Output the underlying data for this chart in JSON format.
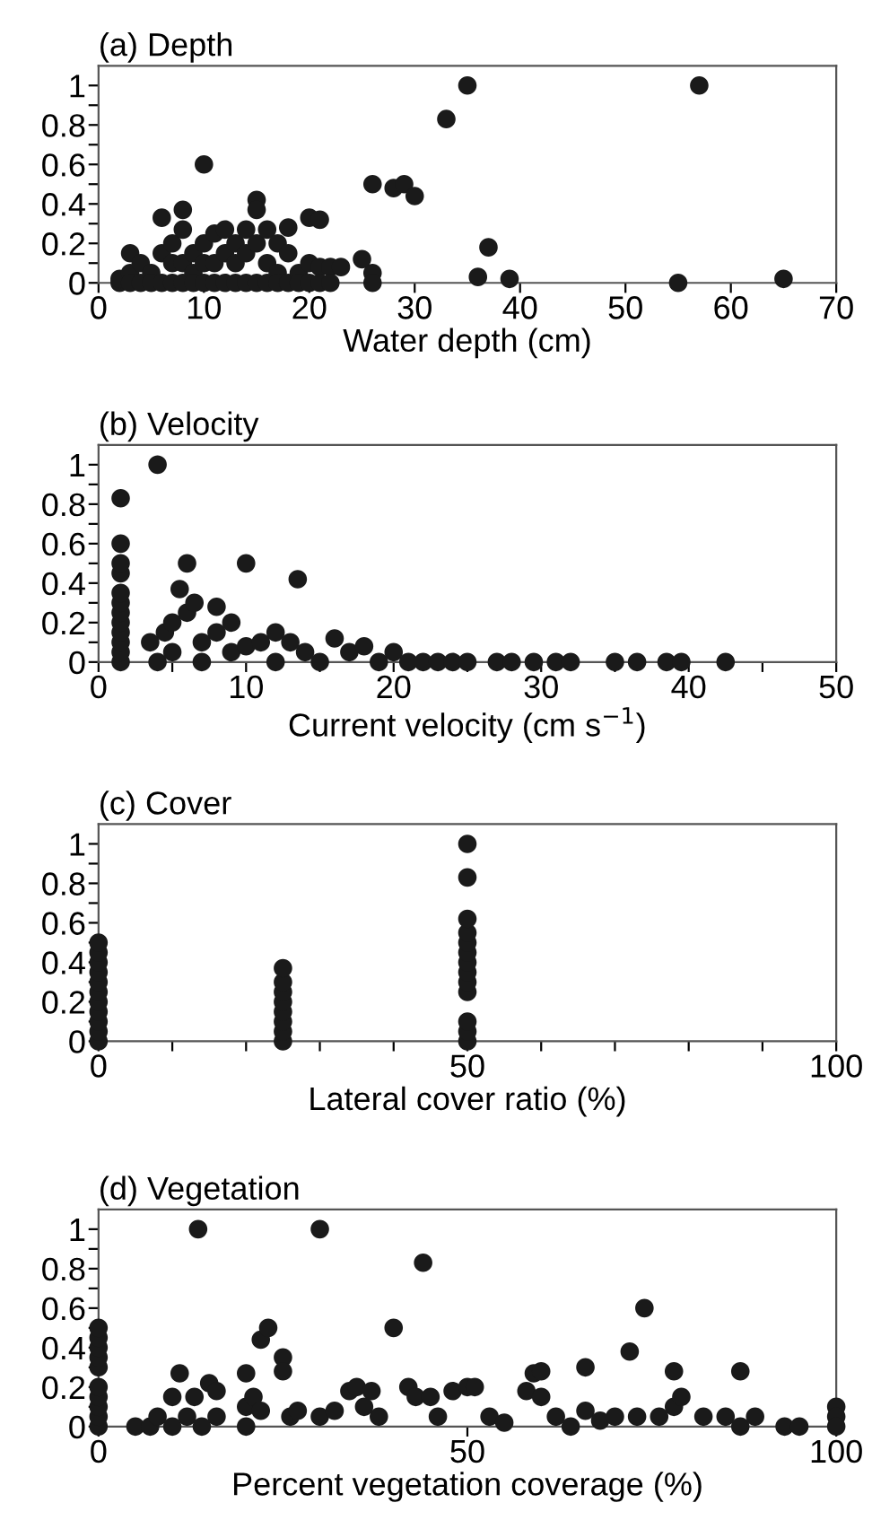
{
  "chart_data": [
    {
      "type": "scatter",
      "title": "(a) Depth",
      "xlabel": "Water depth (cm)",
      "xlim": [
        0,
        70
      ],
      "xticks": [
        0,
        10,
        20,
        30,
        40,
        50,
        60,
        70
      ],
      "ylim": [
        0,
        1.1
      ],
      "yticks": [
        0,
        {
          "value": 0.1,
          "label": null
        },
        0.2,
        {
          "value": 0.3,
          "label": null
        },
        0.4,
        {
          "value": 0.5,
          "label": null
        },
        0.6,
        {
          "value": 0.7,
          "label": null
        },
        0.8,
        {
          "value": 0.9,
          "label": null
        },
        1
      ],
      "marker": "circle",
      "grid": false,
      "legend": false,
      "series": [
        {
          "color": "#1a1a1a",
          "x": [
            2,
            2,
            3,
            3,
            3,
            4,
            4,
            5,
            5,
            6,
            6,
            6,
            7,
            7,
            7,
            8,
            8,
            8,
            8,
            9,
            9,
            9,
            10,
            10,
            10,
            10,
            11,
            11,
            11,
            12,
            12,
            12,
            13,
            13,
            13,
            14,
            14,
            14,
            15,
            15,
            15,
            15,
            16,
            16,
            16,
            17,
            17,
            17,
            18,
            18,
            18,
            19,
            19,
            20,
            20,
            20,
            21,
            21,
            21,
            22,
            22,
            23,
            25,
            26,
            26,
            26,
            28,
            29,
            30,
            33,
            35,
            36,
            37,
            39,
            55,
            57,
            65
          ],
          "values": [
            0,
            0.02,
            0.15,
            0.05,
            0,
            0.1,
            0,
            0.05,
            0,
            0.33,
            0.15,
            0,
            0.2,
            0.1,
            0,
            0.37,
            0.27,
            0.1,
            0,
            0.15,
            0.05,
            0,
            0.6,
            0.2,
            0.1,
            0,
            0.25,
            0.1,
            0,
            0.27,
            0.15,
            0,
            0.2,
            0.1,
            0,
            0.27,
            0.15,
            0,
            0.42,
            0.37,
            0.2,
            0,
            0.27,
            0.1,
            0,
            0.2,
            0.05,
            0,
            0.28,
            0.15,
            0,
            0.05,
            0,
            0.33,
            0.1,
            0,
            0.32,
            0.08,
            0,
            0.08,
            0,
            0.08,
            0.12,
            0.05,
            0,
            0.5,
            0.48,
            0.5,
            0.44,
            0.83,
            1,
            0.03,
            0.18,
            0.02,
            0,
            1,
            0.02
          ]
        }
      ]
    },
    {
      "type": "scatter",
      "title": "(b) Velocity",
      "xlabel": "Current velocity (cm s$^{−1}$)",
      "xlim": [
        0,
        50
      ],
      "xticks": [
        0,
        {
          "value": 5,
          "label": null
        },
        10,
        {
          "value": 15,
          "label": null
        },
        20,
        {
          "value": 25,
          "label": null
        },
        30,
        {
          "value": 35,
          "label": null
        },
        40,
        {
          "value": 45,
          "label": null
        },
        50
      ],
      "ylim": [
        0,
        1.1
      ],
      "yticks": [
        0,
        {
          "value": 0.1,
          "label": null
        },
        0.2,
        {
          "value": 0.3,
          "label": null
        },
        0.4,
        {
          "value": 0.5,
          "label": null
        },
        0.6,
        {
          "value": 0.7,
          "label": null
        },
        0.8,
        {
          "value": 0.9,
          "label": null
        },
        1
      ],
      "marker": "circle",
      "grid": false,
      "legend": false,
      "series": [
        {
          "color": "#1a1a1a",
          "x": [
            1.5,
            1.5,
            1.5,
            1.5,
            1.5,
            1.5,
            1.5,
            1.5,
            1.5,
            1.5,
            1.5,
            1.5,
            3.5,
            4,
            4,
            4.5,
            5,
            5,
            5.5,
            6,
            6,
            6.5,
            7,
            7,
            8,
            8,
            9,
            9,
            10,
            10,
            11,
            12,
            12,
            13,
            13.5,
            14,
            15,
            16,
            17,
            18,
            19,
            20,
            21,
            22,
            23,
            24,
            25,
            27,
            28,
            29.5,
            31,
            32,
            35,
            36.5,
            38.5,
            39.5,
            42.5
          ],
          "values": [
            0,
            0.05,
            0.1,
            0.15,
            0.2,
            0.25,
            0.3,
            0.35,
            0.45,
            0.5,
            0.6,
            0.83,
            0.1,
            1,
            0,
            0.15,
            0.2,
            0.05,
            0.37,
            0.5,
            0.25,
            0.3,
            0.1,
            0,
            0.28,
            0.15,
            0.2,
            0.05,
            0.5,
            0.08,
            0.1,
            0.15,
            0,
            0.1,
            0.42,
            0.05,
            0,
            0.12,
            0.05,
            0.08,
            0,
            0.05,
            0,
            0,
            0,
            0,
            0,
            0,
            0,
            0,
            0,
            0,
            0,
            0,
            0,
            0,
            0
          ]
        }
      ]
    },
    {
      "type": "scatter",
      "title": "(c) Cover",
      "xlabel": "Lateral cover ratio (%)",
      "xlim": [
        0,
        100
      ],
      "xticks": [
        0,
        {
          "value": 10,
          "label": null
        },
        {
          "value": 20,
          "label": null
        },
        {
          "value": 30,
          "label": null
        },
        {
          "value": 40,
          "label": null
        },
        50,
        {
          "value": 60,
          "label": null
        },
        {
          "value": 70,
          "label": null
        },
        {
          "value": 80,
          "label": null
        },
        {
          "value": 90,
          "label": null
        },
        100
      ],
      "ylim": [
        0,
        1.1
      ],
      "yticks": [
        0,
        {
          "value": 0.1,
          "label": null
        },
        0.2,
        {
          "value": 0.3,
          "label": null
        },
        0.4,
        {
          "value": 0.5,
          "label": null
        },
        0.6,
        {
          "value": 0.7,
          "label": null
        },
        0.8,
        {
          "value": 0.9,
          "label": null
        },
        1
      ],
      "marker": "circle",
      "grid": false,
      "legend": false,
      "series": [
        {
          "color": "#1a1a1a",
          "x": [
            0,
            0,
            0,
            0,
            0,
            0,
            0,
            0,
            0,
            0,
            0,
            25,
            25,
            25,
            25,
            25,
            25,
            25,
            25,
            50,
            50,
            50,
            50,
            50,
            50,
            50,
            50,
            50,
            50,
            50,
            50,
            50
          ],
          "values": [
            0,
            0.05,
            0.1,
            0.15,
            0.2,
            0.25,
            0.3,
            0.35,
            0.4,
            0.45,
            0.5,
            0,
            0.05,
            0.1,
            0.15,
            0.2,
            0.25,
            0.3,
            0.37,
            0,
            0.05,
            0.1,
            0.25,
            0.3,
            0.35,
            0.4,
            0.45,
            0.5,
            0.55,
            0.62,
            0.83,
            1
          ]
        }
      ]
    },
    {
      "type": "scatter",
      "title": "(d) Vegetation",
      "xlabel": "Percent vegetation coverage (%)",
      "xlim": [
        0,
        100
      ],
      "xticks": [
        0,
        50,
        100
      ],
      "ylim": [
        0,
        1.1
      ],
      "yticks": [
        0,
        {
          "value": 0.1,
          "label": null
        },
        0.2,
        {
          "value": 0.3,
          "label": null
        },
        0.4,
        {
          "value": 0.5,
          "label": null
        },
        0.6,
        {
          "value": 0.7,
          "label": null
        },
        0.8,
        {
          "value": 0.9,
          "label": null
        },
        1
      ],
      "marker": "circle",
      "grid": false,
      "legend": false,
      "series": [
        {
          "color": "#1a1a1a",
          "x": [
            0,
            0,
            0,
            0,
            0,
            0,
            0,
            0,
            0,
            0,
            5,
            7,
            8,
            10,
            10,
            11,
            12,
            13,
            13.5,
            14,
            15,
            16,
            16,
            20,
            20,
            20,
            21,
            22,
            23,
            22,
            25,
            25,
            26,
            27,
            30,
            30,
            32,
            34,
            35,
            36,
            37,
            38,
            40,
            42,
            43,
            44,
            45,
            46,
            48,
            50,
            51,
            53,
            55,
            58,
            59,
            60,
            60,
            62,
            64,
            66,
            66,
            68,
            70,
            72,
            73,
            74,
            76,
            78,
            78,
            79,
            82,
            85,
            87,
            87,
            89,
            93,
            95,
            100,
            100,
            100
          ],
          "values": [
            0,
            0.05,
            0.1,
            0.15,
            0.2,
            0.3,
            0.35,
            0.4,
            0.45,
            0.5,
            0,
            0,
            0.05,
            0.15,
            0,
            0.27,
            0.05,
            0.15,
            1,
            0,
            0.22,
            0.18,
            0.05,
            0.27,
            0.1,
            0,
            0.15,
            0.44,
            0.5,
            0.08,
            0.35,
            0.28,
            0.05,
            0.08,
            1,
            0.05,
            0.08,
            0.18,
            0.2,
            0.1,
            0.18,
            0.05,
            0.5,
            0.2,
            0.15,
            0.83,
            0.15,
            0.05,
            0.18,
            0.2,
            0.2,
            0.05,
            0.02,
            0.18,
            0.27,
            0.28,
            0.15,
            0.05,
            0,
            0.3,
            0.08,
            0.03,
            0.05,
            0.38,
            0.05,
            0.6,
            0.05,
            0.28,
            0.1,
            0.15,
            0.05,
            0.05,
            0.28,
            0,
            0.05,
            0,
            0,
            0.1,
            0.05,
            0
          ]
        }
      ]
    }
  ]
}
